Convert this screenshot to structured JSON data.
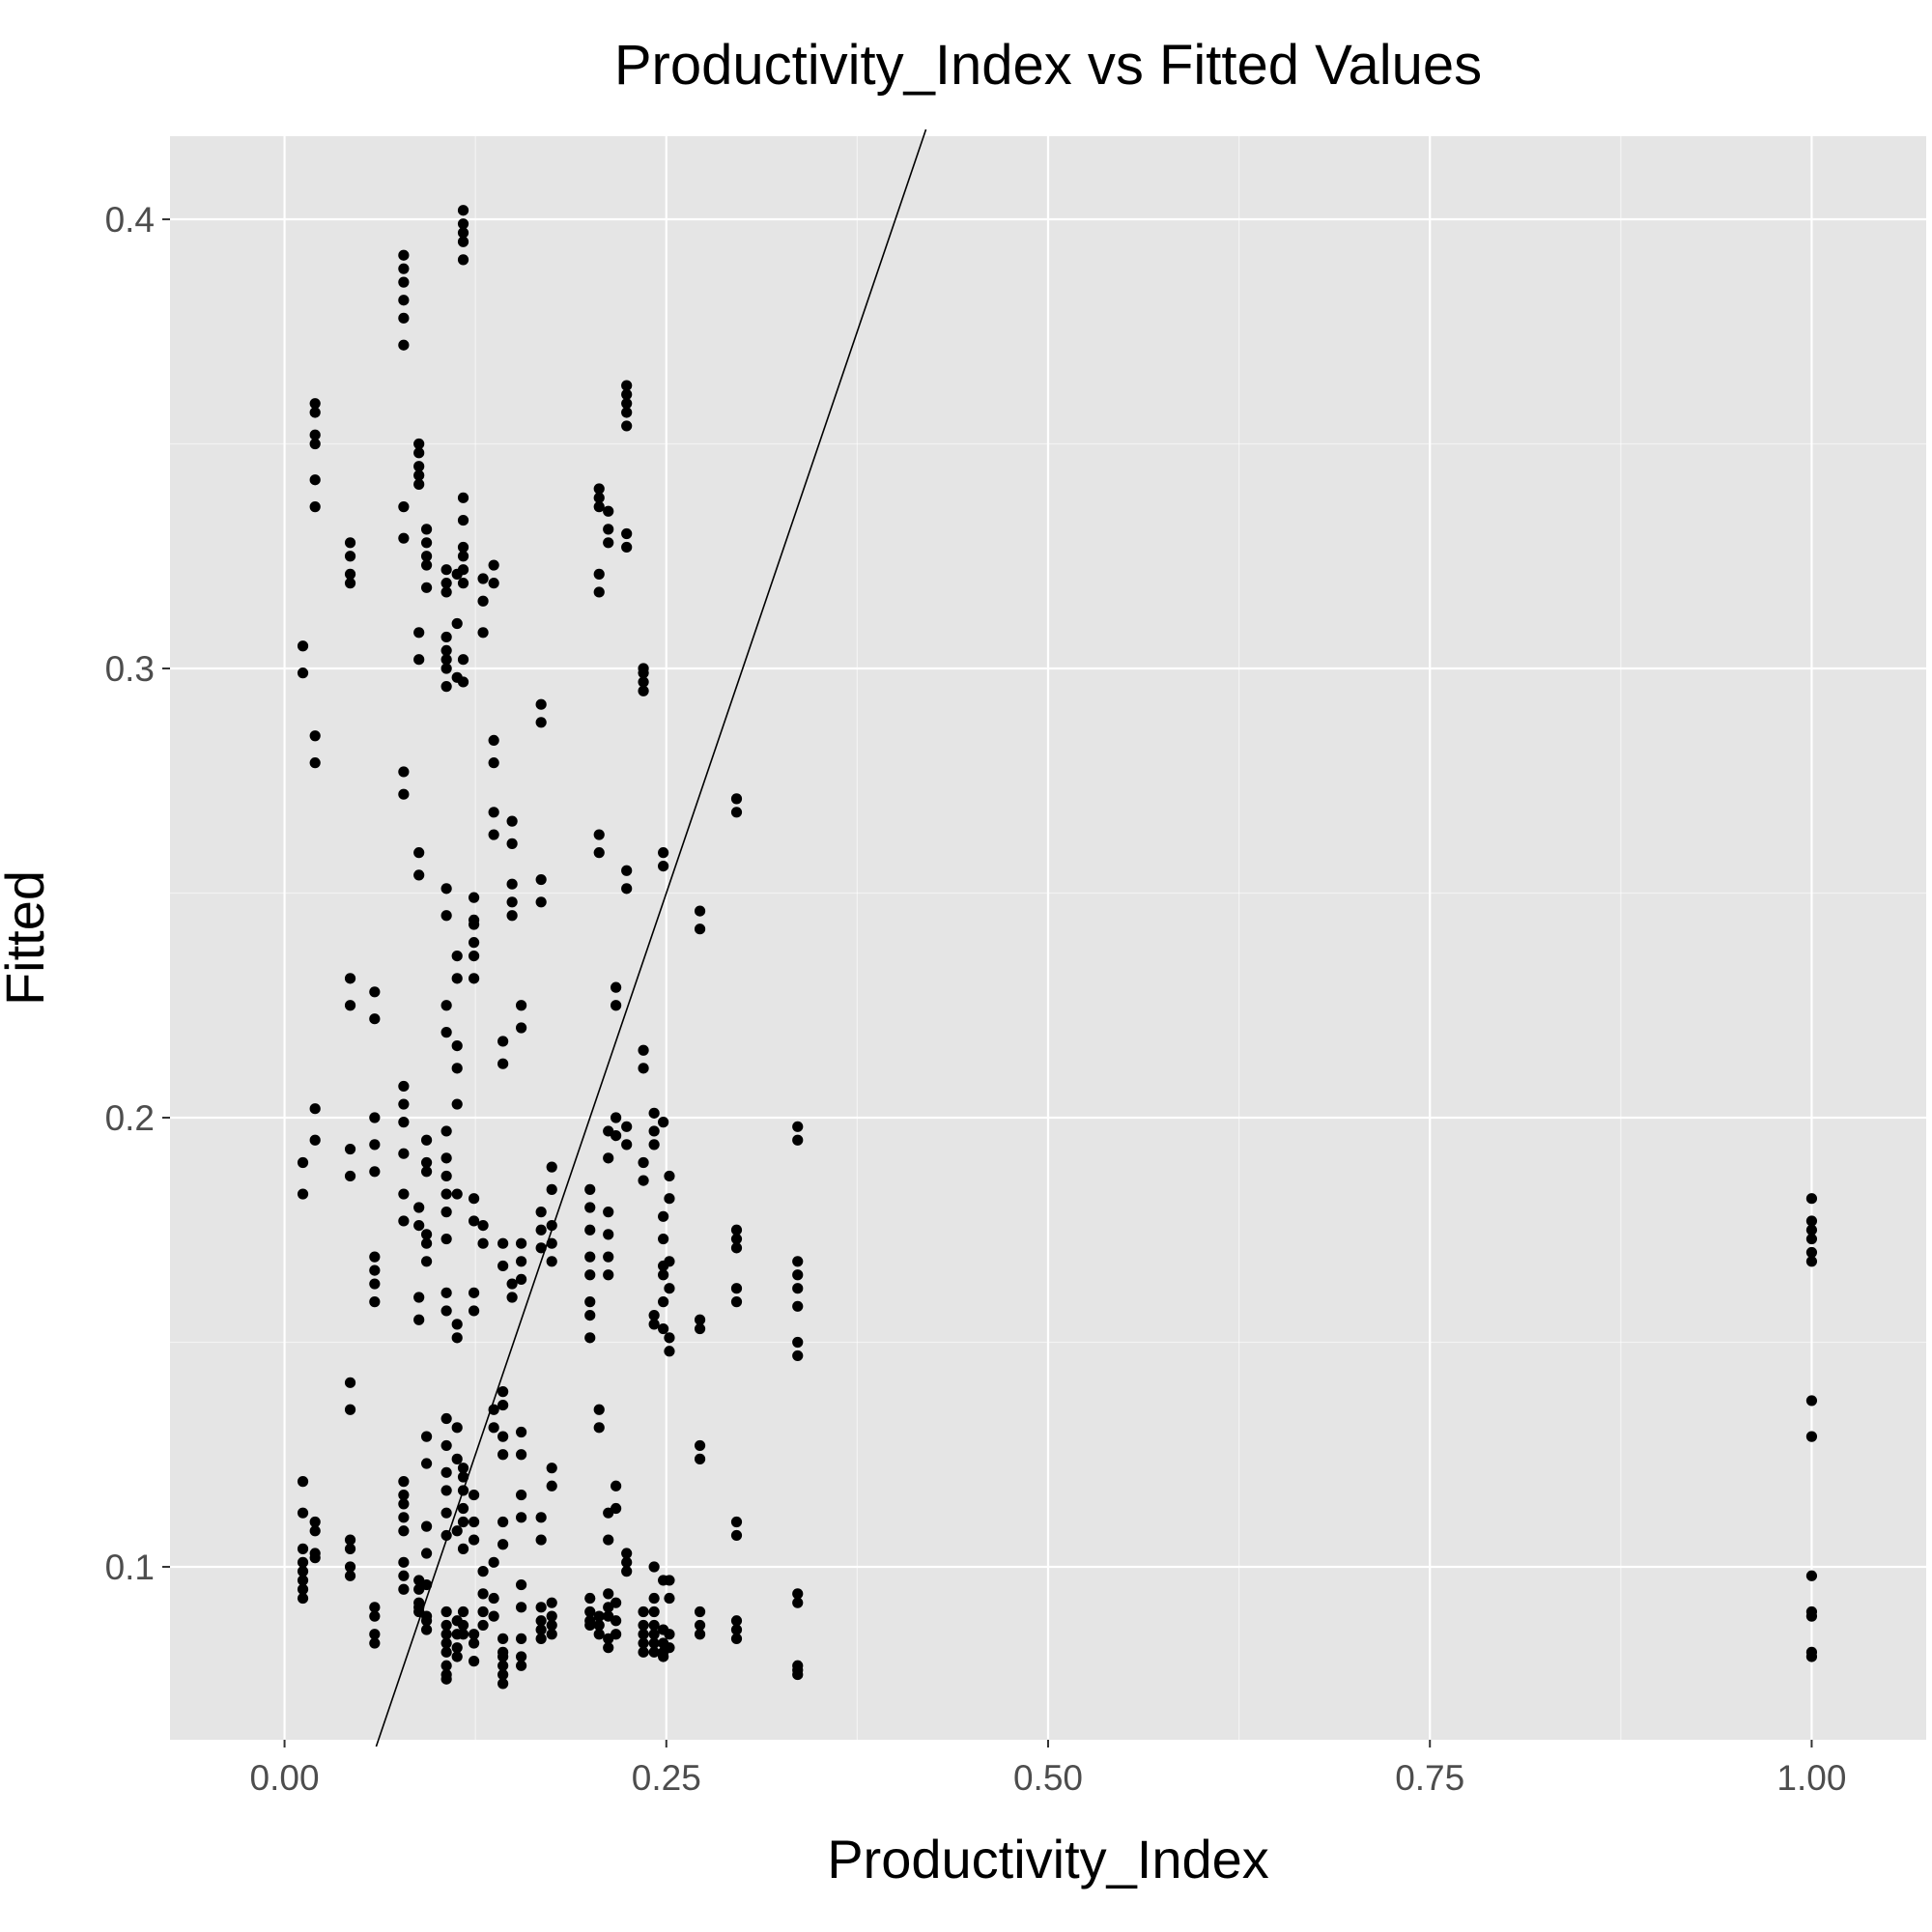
{
  "chart_data": {
    "type": "scatter",
    "title": "Productivity_Index vs Fitted Values",
    "xlabel": "Productivity_Index",
    "ylabel": "Fitted",
    "xlim": [
      -0.075,
      1.075
    ],
    "ylim": [
      0.0615,
      0.4185
    ],
    "x_ticks": [
      0.0,
      0.25,
      0.5,
      0.75,
      1.0
    ],
    "x_tick_labels": [
      "0.00",
      "0.25",
      "0.50",
      "0.75",
      "1.00"
    ],
    "y_ticks": [
      0.1,
      0.2,
      0.3,
      0.4
    ],
    "y_tick_labels": [
      "0.1",
      "0.2",
      "0.3",
      "0.4"
    ],
    "grid": true,
    "panel_background": "#e5e5e5",
    "grid_color": "#ffffff",
    "point_color": "#000000",
    "reference_line": {
      "type": "identity",
      "x": [
        0.06,
        0.42
      ],
      "y": [
        0.06,
        0.42
      ],
      "color": "#000000"
    },
    "series": [
      {
        "columns": [
          {
            "x": 0.012,
            "y": [
              0.305,
              0.299,
              0.19,
              0.183,
              0.119,
              0.112,
              0.104,
              0.101,
              0.099,
              0.097,
              0.095,
              0.093
            ]
          },
          {
            "x": 0.02,
            "y": [
              0.359,
              0.357,
              0.352,
              0.35,
              0.342,
              0.336,
              0.285,
              0.279,
              0.202,
              0.195,
              0.11,
              0.108,
              0.103,
              0.102
            ]
          },
          {
            "x": 0.043,
            "y": [
              0.328,
              0.325,
              0.321,
              0.319,
              0.231,
              0.225,
              0.193,
              0.187,
              0.141,
              0.135,
              0.106,
              0.104,
              0.1,
              0.098
            ]
          },
          {
            "x": 0.059,
            "y": [
              0.228,
              0.222,
              0.2,
              0.194,
              0.188,
              0.169,
              0.166,
              0.163,
              0.159,
              0.091,
              0.089,
              0.085,
              0.083
            ]
          },
          {
            "x": 0.078,
            "y": [
              0.392,
              0.389,
              0.386,
              0.382,
              0.378,
              0.372,
              0.336,
              0.329,
              0.277,
              0.272,
              0.207,
              0.203,
              0.199,
              0.192,
              0.183,
              0.177,
              0.119,
              0.116,
              0.114,
              0.111,
              0.108,
              0.101,
              0.098,
              0.095
            ]
          },
          {
            "x": 0.088,
            "y": [
              0.35,
              0.348,
              0.345,
              0.343,
              0.341,
              0.308,
              0.302,
              0.259,
              0.254,
              0.18,
              0.176,
              0.16,
              0.155,
              0.097,
              0.095,
              0.092,
              0.091,
              0.09
            ]
          },
          {
            "x": 0.093,
            "y": [
              0.331,
              0.328,
              0.325,
              0.323,
              0.318,
              0.195,
              0.19,
              0.188,
              0.174,
              0.172,
              0.168,
              0.129,
              0.123,
              0.109,
              0.103,
              0.096,
              0.089,
              0.088,
              0.086
            ]
          },
          {
            "x": 0.106,
            "y": [
              0.322,
              0.319,
              0.317,
              0.307,
              0.304,
              0.302,
              0.3,
              0.296,
              0.251,
              0.245,
              0.225,
              0.219,
              0.197,
              0.191,
              0.187,
              0.183,
              0.179,
              0.173,
              0.161,
              0.157,
              0.133,
              0.127,
              0.121,
              0.117,
              0.112,
              0.107,
              0.09,
              0.087,
              0.085,
              0.083,
              0.081,
              0.078,
              0.076,
              0.075
            ]
          },
          {
            "x": 0.113,
            "y": [
              0.321,
              0.31,
              0.298,
              0.236,
              0.231,
              0.216,
              0.211,
              0.203,
              0.183,
              0.154,
              0.151,
              0.131,
              0.124,
              0.108,
              0.088,
              0.085,
              0.082,
              0.08
            ]
          },
          {
            "x": 0.117,
            "y": [
              0.402,
              0.399,
              0.397,
              0.395,
              0.391,
              0.338,
              0.333,
              0.327,
              0.325,
              0.322,
              0.319,
              0.302,
              0.297,
              0.122,
              0.12,
              0.117,
              0.113,
              0.11,
              0.104,
              0.09,
              0.087,
              0.085
            ]
          },
          {
            "x": 0.124,
            "y": [
              0.249,
              0.244,
              0.243,
              0.239,
              0.236,
              0.231,
              0.182,
              0.177,
              0.161,
              0.157,
              0.116,
              0.11,
              0.106,
              0.085,
              0.083,
              0.079
            ]
          },
          {
            "x": 0.13,
            "y": [
              0.32,
              0.315,
              0.308,
              0.176,
              0.172,
              0.099,
              0.094,
              0.09,
              0.087
            ]
          },
          {
            "x": 0.137,
            "y": [
              0.323,
              0.319,
              0.284,
              0.279,
              0.268,
              0.263,
              0.135,
              0.131,
              0.101,
              0.093,
              0.089
            ]
          },
          {
            "x": 0.143,
            "y": [
              0.217,
              0.212,
              0.172,
              0.167,
              0.139,
              0.136,
              0.129,
              0.125,
              0.11,
              0.105,
              0.084,
              0.081,
              0.08,
              0.078,
              0.076,
              0.074
            ]
          },
          {
            "x": 0.149,
            "y": [
              0.266,
              0.261,
              0.252,
              0.248,
              0.245,
              0.163,
              0.16
            ]
          },
          {
            "x": 0.155,
            "y": [
              0.225,
              0.22,
              0.172,
              0.168,
              0.164,
              0.13,
              0.125,
              0.116,
              0.111,
              0.096,
              0.091,
              0.084,
              0.08,
              0.078
            ]
          },
          {
            "x": 0.168,
            "y": [
              0.292,
              0.288,
              0.253,
              0.248,
              0.179,
              0.175,
              0.171,
              0.111,
              0.106,
              0.091,
              0.088,
              0.086,
              0.084
            ]
          },
          {
            "x": 0.175,
            "y": [
              0.189,
              0.184,
              0.176,
              0.172,
              0.168,
              0.122,
              0.118,
              0.092,
              0.089,
              0.087,
              0.085
            ]
          },
          {
            "x": 0.2,
            "y": [
              0.184,
              0.18,
              0.175,
              0.169,
              0.165,
              0.159,
              0.156,
              0.151,
              0.093,
              0.09,
              0.088,
              0.087
            ]
          },
          {
            "x": 0.206,
            "y": [
              0.34,
              0.338,
              0.336,
              0.321,
              0.317,
              0.263,
              0.259,
              0.135,
              0.131,
              0.089,
              0.087,
              0.085
            ]
          },
          {
            "x": 0.212,
            "y": [
              0.335,
              0.331,
              0.328,
              0.197,
              0.191,
              0.179,
              0.174,
              0.169,
              0.165,
              0.112,
              0.106,
              0.094,
              0.091,
              0.089,
              0.084,
              0.082
            ]
          },
          {
            "x": 0.217,
            "y": [
              0.229,
              0.225,
              0.2,
              0.196,
              0.118,
              0.113,
              0.092,
              0.088,
              0.085
            ]
          },
          {
            "x": 0.224,
            "y": [
              0.363,
              0.361,
              0.359,
              0.357,
              0.354,
              0.33,
              0.327,
              0.255,
              0.251,
              0.198,
              0.194,
              0.103,
              0.101,
              0.099
            ]
          },
          {
            "x": 0.235,
            "y": [
              0.3,
              0.299,
              0.297,
              0.295,
              0.215,
              0.211,
              0.19,
              0.186,
              0.09,
              0.087,
              0.085,
              0.083,
              0.081
            ]
          },
          {
            "x": 0.242,
            "y": [
              0.201,
              0.197,
              0.194,
              0.156,
              0.154,
              0.1,
              0.093,
              0.09,
              0.087,
              0.085,
              0.083,
              0.081
            ]
          },
          {
            "x": 0.248,
            "y": [
              0.259,
              0.256,
              0.199,
              0.178,
              0.173,
              0.167,
              0.165,
              0.159,
              0.153,
              0.097,
              0.086,
              0.083,
              0.081,
              0.08
            ]
          },
          {
            "x": 0.252,
            "y": [
              0.187,
              0.182,
              0.168,
              0.162,
              0.151,
              0.148,
              0.097,
              0.093,
              0.085,
              0.082
            ]
          },
          {
            "x": 0.272,
            "y": [
              0.246,
              0.242,
              0.155,
              0.153,
              0.127,
              0.124,
              0.09,
              0.087,
              0.085
            ]
          },
          {
            "x": 0.296,
            "y": [
              0.271,
              0.268,
              0.175,
              0.173,
              0.171,
              0.162,
              0.159,
              0.11,
              0.107,
              0.088,
              0.086,
              0.084
            ]
          },
          {
            "x": 0.336,
            "y": [
              0.198,
              0.195,
              0.168,
              0.165,
              0.162,
              0.158,
              0.15,
              0.147,
              0.094,
              0.092,
              0.078,
              0.077,
              0.076
            ]
          },
          {
            "x": 1.0,
            "y": [
              0.182,
              0.177,
              0.175,
              0.173,
              0.17,
              0.168,
              0.137,
              0.129,
              0.098,
              0.09,
              0.089,
              0.081,
              0.08
            ]
          }
        ]
      }
    ]
  }
}
